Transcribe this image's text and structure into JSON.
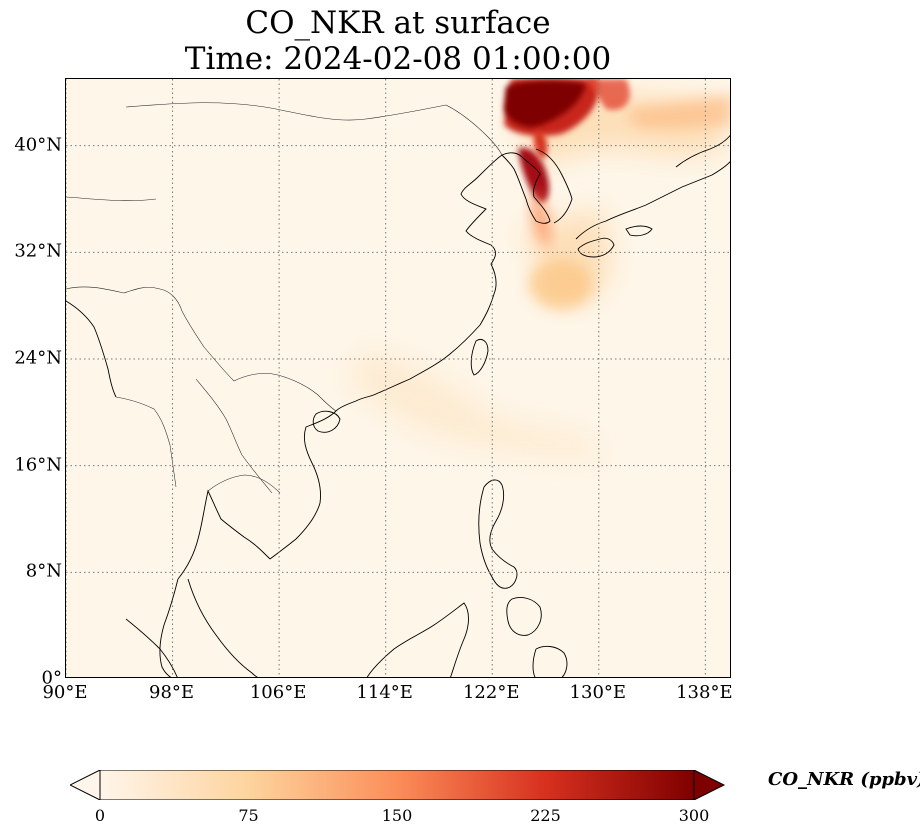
{
  "title": {
    "line1": "CO_NKR at surface",
    "line2": "Time: 2024-02-08 01:00:00"
  },
  "map": {
    "extent": {
      "lon_min": 90,
      "lon_max": 140,
      "lat_min": 0,
      "lat_max": 45
    },
    "lat_ticks": [
      {
        "value": 0,
        "label": "0°"
      },
      {
        "value": 8,
        "label": "8°N"
      },
      {
        "value": 16,
        "label": "16°N"
      },
      {
        "value": 24,
        "label": "24°N"
      },
      {
        "value": 32,
        "label": "32°N"
      },
      {
        "value": 40,
        "label": "40°N"
      }
    ],
    "lon_ticks": [
      {
        "value": 90,
        "label": "90°E"
      },
      {
        "value": 98,
        "label": "98°E"
      },
      {
        "value": 106,
        "label": "106°E"
      },
      {
        "value": 114,
        "label": "114°E"
      },
      {
        "value": 122,
        "label": "122°E"
      },
      {
        "value": 130,
        "label": "130°E"
      },
      {
        "value": 138,
        "label": "138°E"
      }
    ],
    "gridlines": true
  },
  "colorbar": {
    "label": "CO_NKR (ppbv)",
    "min": 0,
    "max": 300,
    "extend": "both",
    "colors": [
      "#fff5eb",
      "#fdd49e",
      "#fc8d59",
      "#d7301f",
      "#7f0000"
    ],
    "ticks": [
      {
        "value": 0,
        "label": "0"
      },
      {
        "value": 75,
        "label": "75"
      },
      {
        "value": 150,
        "label": "150"
      },
      {
        "value": 225,
        "label": "225"
      },
      {
        "value": 300,
        "label": "300"
      }
    ]
  }
}
